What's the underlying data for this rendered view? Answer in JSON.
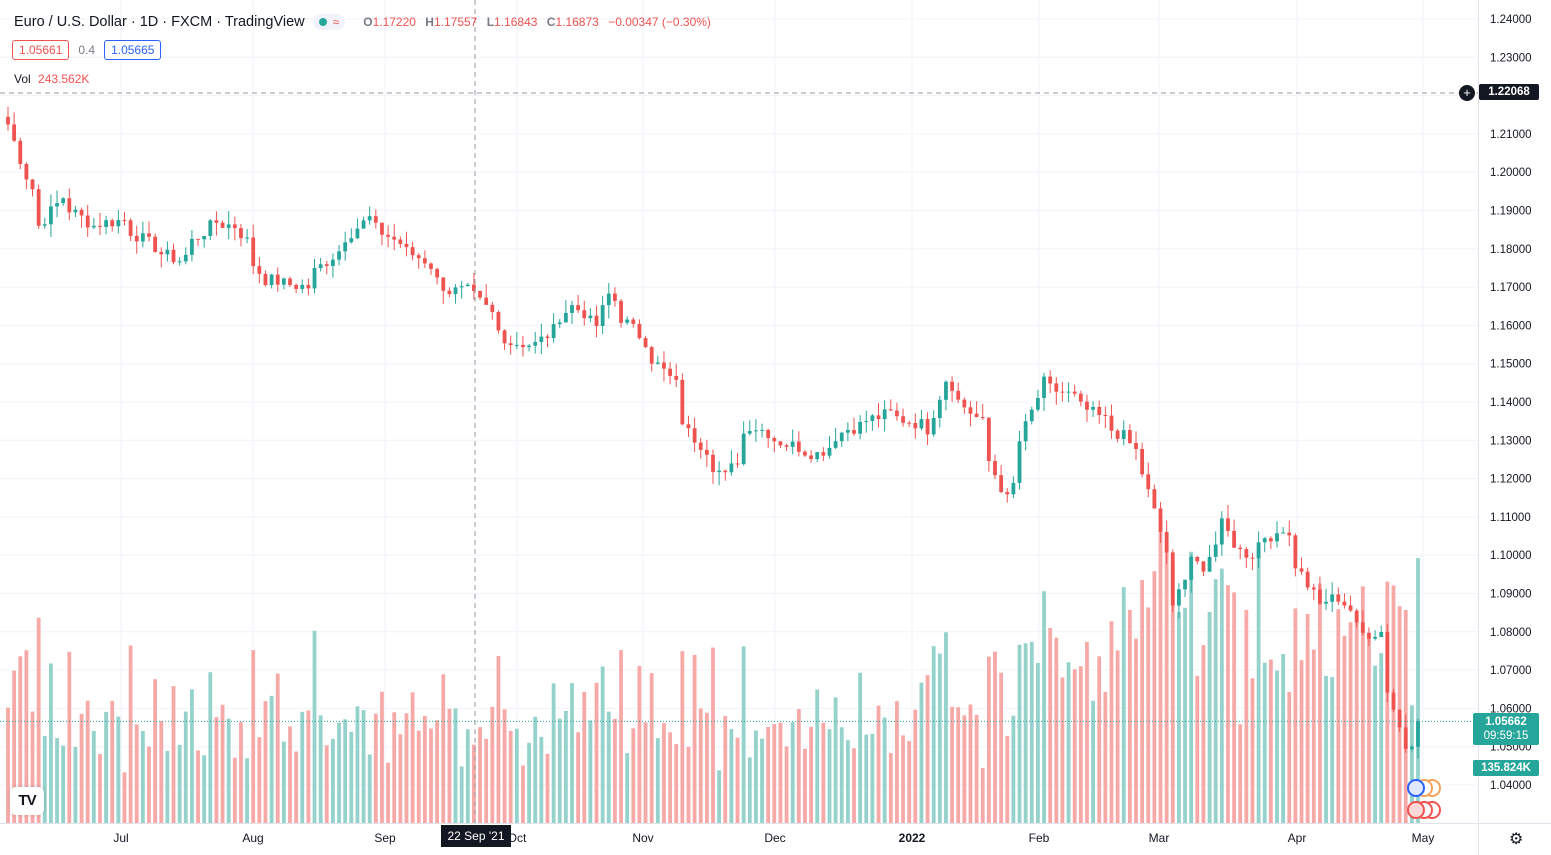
{
  "legend": {
    "title": "Euro / U.S. Dollar · 1D · FXCM · TradingView",
    "wave_icon": "≈",
    "ohlc": {
      "o_label": "O",
      "o": "1.17220",
      "h_label": "H",
      "h": "1.17557",
      "l_label": "L",
      "l": "1.16843",
      "c_label": "C",
      "c": "1.16873",
      "change": "−0.00347 (−0.30%)"
    }
  },
  "quote": {
    "bid": "1.05661",
    "spread": "0.4",
    "ask": "1.05665"
  },
  "volume": {
    "label": "Vol",
    "value": "243.562K"
  },
  "price_axis": {
    "labels": [
      "1.24000",
      "1.23000",
      "1.22000",
      "1.21000",
      "1.20000",
      "1.19000",
      "1.18000",
      "1.17000",
      "1.16000",
      "1.15000",
      "1.14000",
      "1.13000",
      "1.12000",
      "1.11000",
      "1.10000",
      "1.09000",
      "1.08000",
      "1.07000",
      "1.06000",
      "1.05000",
      "1.04000"
    ],
    "crosshair_price": "1.22068",
    "last_price": "1.05662",
    "countdown": "09:59:15",
    "last_volume": "135.824K"
  },
  "time_axis": {
    "labels": [
      "Jul",
      "Aug",
      "Sep",
      "Oct",
      "Nov",
      "Dec",
      "2022",
      "Feb",
      "Mar",
      "Apr",
      "May"
    ],
    "crosshair_date": "22 Sep '21"
  },
  "colors": {
    "up": "#26a69a",
    "down": "#ef5350",
    "vol_up": "#94d2cb",
    "vol_down": "#f7a9a7",
    "grid": "#f0f3fa"
  },
  "icons": {
    "logo": "tradingview-logo-icon",
    "settings": "gear-icon",
    "add": "plus-circle-icon",
    "events": "flag-events-icon"
  },
  "chart_data": {
    "type": "candlestick",
    "title": "Euro / U.S. Dollar · 1D · FXCM",
    "ylim": [
      1.035,
      1.245
    ],
    "grid": true,
    "x_start": "2021-06-14",
    "x_end": "2022-05-02",
    "anchors": [
      {
        "date": "2021-06-14",
        "close": 1.2125
      },
      {
        "date": "2021-06-17",
        "close": 1.199
      },
      {
        "date": "2021-06-21",
        "close": 1.186
      },
      {
        "date": "2021-06-25",
        "close": 1.1935
      },
      {
        "date": "2021-07-02",
        "close": 1.186
      },
      {
        "date": "2021-07-09",
        "close": 1.1875
      },
      {
        "date": "2021-07-16",
        "close": 1.1805
      },
      {
        "date": "2021-07-22",
        "close": 1.177
      },
      {
        "date": "2021-07-30",
        "close": 1.187
      },
      {
        "date": "2021-08-04",
        "close": 1.186
      },
      {
        "date": "2021-08-11",
        "close": 1.172
      },
      {
        "date": "2021-08-20",
        "close": 1.17
      },
      {
        "date": "2021-08-27",
        "close": 1.1795
      },
      {
        "date": "2021-09-03",
        "close": 1.188
      },
      {
        "date": "2021-09-10",
        "close": 1.1815
      },
      {
        "date": "2021-09-16",
        "close": 1.177
      },
      {
        "date": "2021-09-22",
        "close": 1.169
      },
      {
        "date": "2021-09-27",
        "close": 1.169
      },
      {
        "date": "2021-10-06",
        "close": 1.1555
      },
      {
        "date": "2021-10-12",
        "close": 1.155
      },
      {
        "date": "2021-10-20",
        "close": 1.165
      },
      {
        "date": "2021-10-26",
        "close": 1.16
      },
      {
        "date": "2021-10-28",
        "close": 1.168
      },
      {
        "date": "2021-11-05",
        "close": 1.156
      },
      {
        "date": "2021-11-10",
        "close": 1.148
      },
      {
        "date": "2021-11-12",
        "close": 1.1445
      },
      {
        "date": "2021-11-16",
        "close": 1.132
      },
      {
        "date": "2021-11-24",
        "close": 1.1205
      },
      {
        "date": "2021-11-30",
        "close": 1.134
      },
      {
        "date": "2021-12-08",
        "close": 1.129
      },
      {
        "date": "2021-12-15",
        "close": 1.1265
      },
      {
        "date": "2021-12-22",
        "close": 1.133
      },
      {
        "date": "2021-12-31",
        "close": 1.137
      },
      {
        "date": "2022-01-10",
        "close": 1.133
      },
      {
        "date": "2022-01-13",
        "close": 1.146
      },
      {
        "date": "2022-01-21",
        "close": 1.1345
      },
      {
        "date": "2022-01-27",
        "close": 1.1145
      },
      {
        "date": "2022-02-04",
        "close": 1.145
      },
      {
        "date": "2022-02-10",
        "close": 1.142
      },
      {
        "date": "2022-02-16",
        "close": 1.137
      },
      {
        "date": "2022-02-23",
        "close": 1.131
      },
      {
        "date": "2022-02-28",
        "close": 1.1215
      },
      {
        "date": "2022-03-07",
        "close": 1.0855
      },
      {
        "date": "2022-03-10",
        "close": 1.1
      },
      {
        "date": "2022-03-14",
        "close": 1.094
      },
      {
        "date": "2022-03-17",
        "close": 1.109
      },
      {
        "date": "2022-03-23",
        "close": 1.1
      },
      {
        "date": "2022-03-31",
        "close": 1.107
      },
      {
        "date": "2022-04-04",
        "close": 1.0975
      },
      {
        "date": "2022-04-08",
        "close": 1.087
      },
      {
        "date": "2022-04-13",
        "close": 1.089
      },
      {
        "date": "2022-04-19",
        "close": 1.0795
      },
      {
        "date": "2022-04-22",
        "close": 1.08
      },
      {
        "date": "2022-04-28",
        "close": 1.05
      },
      {
        "date": "2022-05-02",
        "close": 1.0566
      }
    ]
  }
}
